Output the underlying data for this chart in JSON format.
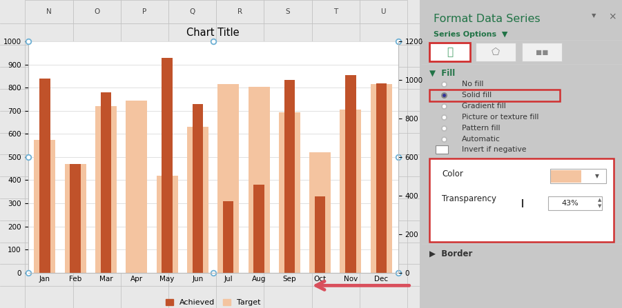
{
  "title": "Chart Title",
  "months": [
    "Jan",
    "Feb",
    "Mar",
    "Apr",
    "May",
    "Jun",
    "Jul",
    "Aug",
    "Sep",
    "Oct",
    "Nov",
    "Dec"
  ],
  "achieved": [
    840,
    470,
    780,
    0,
    930,
    730,
    310,
    380,
    835,
    330,
    855,
    820
  ],
  "target": [
    575,
    470,
    720,
    745,
    420,
    630,
    815,
    805,
    695,
    520,
    705,
    815
  ],
  "achieved_color": "#C0522A",
  "target_color": "#F4C4A0",
  "left_ylim": [
    0,
    1000
  ],
  "left_yticks": [
    0,
    100,
    200,
    300,
    400,
    500,
    600,
    700,
    800,
    900,
    1000
  ],
  "right_ylim": [
    0,
    1200
  ],
  "right_yticks": [
    0,
    200,
    400,
    600,
    800,
    1000,
    1200
  ],
  "grid_color": "#E0E0E0",
  "panel_title": "Format Data Series",
  "panel_subtitle": "Series Options",
  "fill_options": [
    "No fill",
    "Solid fill",
    "Gradient fill",
    "Picture or texture fill",
    "Pattern fill",
    "Automatic",
    "Invert if negative"
  ],
  "selected_fill": "Solid fill",
  "transparency": "43%",
  "arrow_color": "#D94F5C",
  "dot_color": "#6EB0D4",
  "excel_col_headers": [
    "N",
    "O",
    "P",
    "Q",
    "R",
    "S",
    "T",
    "U"
  ],
  "red_border_color": "#D03030",
  "green_color": "#217346"
}
